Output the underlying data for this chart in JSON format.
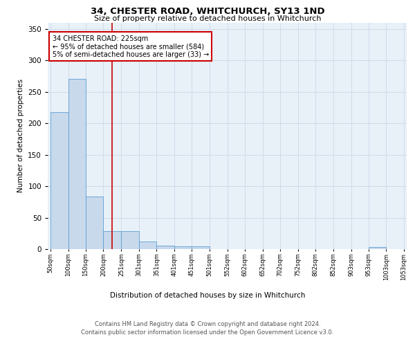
{
  "title": "34, CHESTER ROAD, WHITCHURCH, SY13 1ND",
  "subtitle": "Size of property relative to detached houses in Whitchurch",
  "xlabel": "Distribution of detached houses by size in Whitchurch",
  "ylabel": "Number of detached properties",
  "bar_values": [
    218,
    270,
    84,
    29,
    29,
    12,
    5,
    4,
    4,
    0,
    0,
    0,
    0,
    0,
    0,
    0,
    0,
    0,
    3,
    0
  ],
  "bar_edges": [
    50,
    100,
    150,
    200,
    251,
    301,
    351,
    401,
    451,
    501,
    552,
    602,
    652,
    702,
    752,
    802,
    852,
    903,
    953,
    1003,
    1053
  ],
  "bar_color": "#c8d9ec",
  "bar_edge_color": "#5a9fd4",
  "grid_color": "#d0dcea",
  "bg_color": "#e8f0f8",
  "property_line_x": 225,
  "property_line_color": "#cc0000",
  "annotation_text": "34 CHESTER ROAD: 225sqm\n← 95% of detached houses are smaller (584)\n5% of semi-detached houses are larger (33) →",
  "annotation_box_color": "#ffffff",
  "annotation_box_edge": "#cc0000",
  "ylim": [
    0,
    360
  ],
  "yticks": [
    0,
    50,
    100,
    150,
    200,
    250,
    300,
    350
  ],
  "tick_labels": [
    "50sqm",
    "100sqm",
    "150sqm",
    "200sqm",
    "251sqm",
    "301sqm",
    "351sqm",
    "401sqm",
    "451sqm",
    "501sqm",
    "552sqm",
    "602sqm",
    "652sqm",
    "702sqm",
    "752sqm",
    "802sqm",
    "852sqm",
    "903sqm",
    "953sqm",
    "1003sqm",
    "1053sqm"
  ],
  "footer_line1": "Contains HM Land Registry data © Crown copyright and database right 2024.",
  "footer_line2": "Contains public sector information licensed under the Open Government Licence v3.0."
}
